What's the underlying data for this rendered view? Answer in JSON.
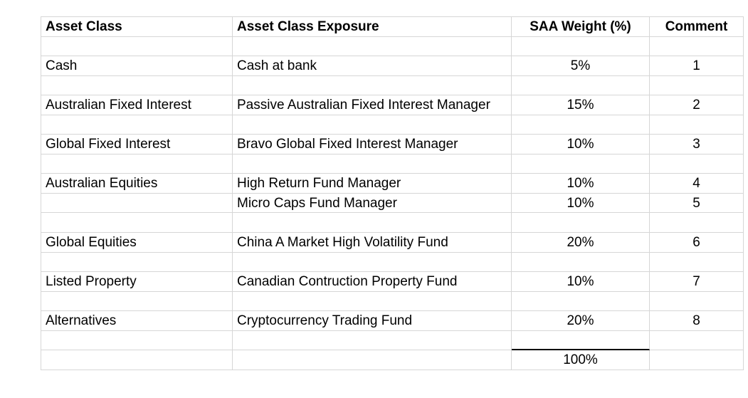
{
  "theme": {
    "background": "#ffffff",
    "grid_color": "#d6d6d6",
    "text_color": "#000000",
    "sum_rule_color": "#000000"
  },
  "table": {
    "header": [
      "Asset Class",
      "Asset Class Exposure",
      "SAA Weight (%)",
      "Comment"
    ],
    "rows": [
      [
        "",
        "",
        "",
        ""
      ],
      [
        "Cash",
        "Cash at bank",
        "5%",
        "1"
      ],
      [
        "",
        "",
        "",
        ""
      ],
      [
        "Australian Fixed Interest",
        "Passive Australian Fixed Interest Manager",
        "15%",
        "2"
      ],
      [
        "",
        "",
        "",
        ""
      ],
      [
        "Global Fixed Interest",
        "Bravo Global Fixed Interest Manager",
        "10%",
        "3"
      ],
      [
        "",
        "",
        "",
        ""
      ],
      [
        "Australian Equities",
        "High Return Fund Manager",
        "10%",
        "4"
      ],
      [
        "",
        "Micro Caps Fund Manager",
        "10%",
        "5"
      ],
      [
        "",
        "",
        "",
        ""
      ],
      [
        "Global Equities",
        "China A Market High Volatility Fund",
        "20%",
        "6"
      ],
      [
        "",
        "",
        "",
        ""
      ],
      [
        "Listed Property",
        "Canadian Contruction Property Fund",
        "10%",
        "7"
      ],
      [
        "",
        "",
        "",
        ""
      ],
      [
        "Alternatives",
        "Cryptocurrency Trading Fund",
        "20%",
        "8"
      ],
      [
        "",
        "",
        "",
        ""
      ],
      [
        "",
        "",
        "100%",
        ""
      ]
    ],
    "total_weight": "100%"
  },
  "chart_data": {
    "type": "table",
    "columns": [
      "Asset Class",
      "Asset Class Exposure",
      "SAA Weight (%)",
      "Comment"
    ],
    "rows": [
      [
        "Cash",
        "Cash at bank",
        "5%",
        "1"
      ],
      [
        "Australian Fixed Interest",
        "Passive Australian Fixed Interest Manager",
        "15%",
        "2"
      ],
      [
        "Global Fixed Interest",
        "Bravo Global Fixed Interest Manager",
        "10%",
        "3"
      ],
      [
        "Australian Equities",
        "High Return Fund Manager",
        "10%",
        "4"
      ],
      [
        "",
        "Micro Caps Fund Manager",
        "10%",
        "5"
      ],
      [
        "Global Equities",
        "China A Market High Volatility Fund",
        "20%",
        "6"
      ],
      [
        "Listed Property",
        "Canadian Contruction Property Fund",
        "10%",
        "7"
      ],
      [
        "Alternatives",
        "Cryptocurrency Trading Fund",
        "20%",
        "8"
      ]
    ],
    "total_row": [
      "",
      "",
      "100%",
      ""
    ]
  }
}
